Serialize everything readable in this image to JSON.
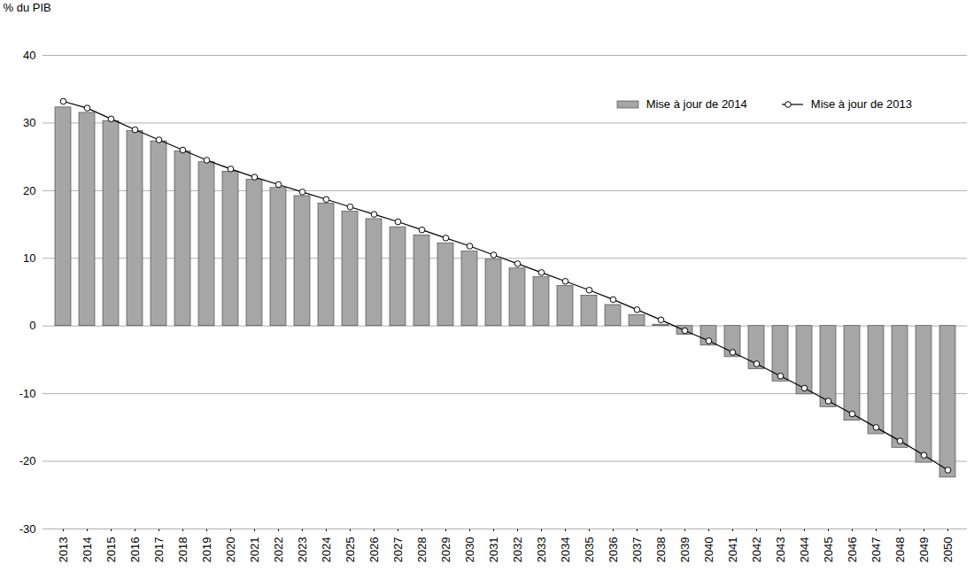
{
  "chart_data": {
    "type": "bar",
    "y_label": "% du PIB",
    "categories": [
      "2013",
      "2014",
      "2015",
      "2016",
      "2017",
      "2018",
      "2019",
      "2020",
      "2021",
      "2022",
      "2023",
      "2024",
      "2025",
      "2026",
      "2027",
      "2028",
      "2029",
      "2030",
      "2031",
      "2032",
      "2033",
      "2034",
      "2035",
      "2036",
      "2037",
      "2038",
      "2039",
      "2040",
      "2041",
      "2042",
      "2043",
      "2044",
      "2045",
      "2046",
      "2047",
      "2048",
      "2049",
      "2050"
    ],
    "series": [
      {
        "name": "Mise à jour de 2014",
        "type": "bar",
        "color": "#a6a6a6",
        "values": [
          32.3,
          31.5,
          30.3,
          28.8,
          27.3,
          25.8,
          24.2,
          22.8,
          21.6,
          20.4,
          19.2,
          18.1,
          16.9,
          15.8,
          14.6,
          13.4,
          12.2,
          11.0,
          9.8,
          8.5,
          7.2,
          5.9,
          4.5,
          3.1,
          1.6,
          0.2,
          -1.3,
          -2.9,
          -4.6,
          -6.4,
          -8.2,
          -10.1,
          -12.0,
          -14.0,
          -16.0,
          -18.0,
          -20.2,
          -22.4
        ]
      },
      {
        "name": "Mise à jour de 2013",
        "type": "line",
        "color": "#000000",
        "marker": "circle",
        "values": [
          33.2,
          32.2,
          30.6,
          29.0,
          27.5,
          26.0,
          24.5,
          23.2,
          22.0,
          20.9,
          19.8,
          18.7,
          17.6,
          16.5,
          15.4,
          14.2,
          13.0,
          11.8,
          10.5,
          9.2,
          7.9,
          6.6,
          5.3,
          3.9,
          2.4,
          0.9,
          -0.7,
          -2.2,
          -3.9,
          -5.6,
          -7.4,
          -9.2,
          -11.1,
          -13.0,
          -15.0,
          -17.0,
          -19.1,
          -21.3
        ]
      }
    ],
    "ylim": [
      -30,
      40
    ],
    "yticks": [
      -30,
      -20,
      -10,
      0,
      10,
      20,
      30,
      40
    ],
    "grid": true,
    "legend": "upper right"
  }
}
